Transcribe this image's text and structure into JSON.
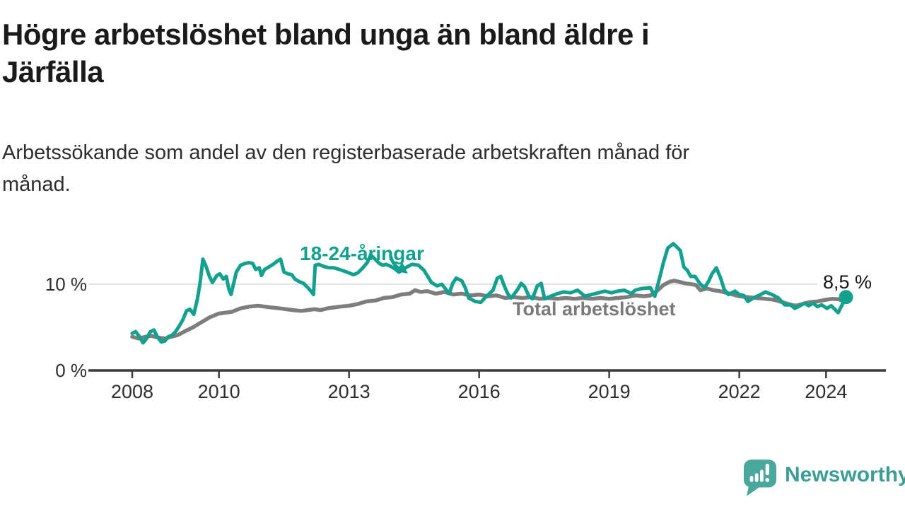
{
  "title": {
    "line1": "Högre arbetslöshet bland unga än bland äldre i",
    "line2": "Järfälla"
  },
  "subtitle": {
    "line1": "Arbetssökande som andel av den registerbaserade arbetskraften månad för",
    "line2": "månad."
  },
  "branding": {
    "name": "Newsworthy",
    "icon": "speech-bubble-bar-chart-exclamation",
    "color": "#3b9e94",
    "icon_color": "#4aa79c"
  },
  "colors": {
    "accent_teal": "#12a08f",
    "series_gray": "#7d7d7d",
    "gridline": "#d9d9d9",
    "axis": "#3c3c3c",
    "background": "#ffffff"
  },
  "chart_data": {
    "type": "line",
    "title": "Högre arbetslöshet bland unga än bland äldre i Järfälla",
    "subtitle": "Arbetssökande som andel av den registerbaserade arbetskraften månad för månad.",
    "unit": "%",
    "grid": "horizontal-at-10-only",
    "legend_position": "inline-labels-on-lines",
    "x_axis": {
      "range": [
        2007.9,
        2025.4
      ],
      "ticks": [
        {
          "year": 2008,
          "label": "2008"
        },
        {
          "year": 2010,
          "label": "2010"
        },
        {
          "year": 2013,
          "label": "2013"
        },
        {
          "year": 2016,
          "label": "2016"
        },
        {
          "year": 2019,
          "label": "2019"
        },
        {
          "year": 2022,
          "label": "2022"
        },
        {
          "year": 2024,
          "label": "2024"
        }
      ]
    },
    "y_axis": {
      "range": [
        0,
        16
      ],
      "ticks": [
        {
          "value": 0,
          "label": "0 %"
        },
        {
          "value": 10,
          "label": "10 %"
        }
      ]
    },
    "annotations": {
      "latest_label": "8,5 %",
      "latest_point": [
        2024.46,
        8.5
      ]
    },
    "series": [
      {
        "name": "18-24-åringar",
        "color": "#12a08f",
        "points": [
          [
            2008.0,
            4.3
          ],
          [
            2008.08,
            4.5
          ],
          [
            2008.17,
            3.9
          ],
          [
            2008.25,
            3.2
          ],
          [
            2008.33,
            3.7
          ],
          [
            2008.42,
            4.5
          ],
          [
            2008.5,
            4.7
          ],
          [
            2008.58,
            3.9
          ],
          [
            2008.67,
            3.3
          ],
          [
            2008.75,
            3.4
          ],
          [
            2008.83,
            3.9
          ],
          [
            2008.92,
            4.1
          ],
          [
            2009.0,
            4.5
          ],
          [
            2009.08,
            5.1
          ],
          [
            2009.17,
            5.9
          ],
          [
            2009.25,
            6.9
          ],
          [
            2009.33,
            7.1
          ],
          [
            2009.42,
            6.5
          ],
          [
            2009.5,
            8.2
          ],
          [
            2009.56,
            10.0
          ],
          [
            2009.63,
            12.9
          ],
          [
            2009.7,
            12.1
          ],
          [
            2009.78,
            10.9
          ],
          [
            2009.85,
            10.2
          ],
          [
            2009.95,
            11.0
          ],
          [
            2010.02,
            11.2
          ],
          [
            2010.1,
            10.6
          ],
          [
            2010.17,
            10.9
          ],
          [
            2010.23,
            9.4
          ],
          [
            2010.28,
            8.8
          ],
          [
            2010.4,
            11.4
          ],
          [
            2010.5,
            12.2
          ],
          [
            2010.6,
            12.4
          ],
          [
            2010.7,
            12.5
          ],
          [
            2010.78,
            12.4
          ],
          [
            2010.85,
            11.7
          ],
          [
            2010.93,
            11.9
          ],
          [
            2010.98,
            11.0
          ],
          [
            2011.05,
            11.7
          ],
          [
            2011.15,
            12.0
          ],
          [
            2011.25,
            12.3
          ],
          [
            2011.35,
            12.7
          ],
          [
            2011.42,
            12.9
          ],
          [
            2011.5,
            11.4
          ],
          [
            2011.6,
            11.2
          ],
          [
            2011.68,
            11.1
          ],
          [
            2011.75,
            10.6
          ],
          [
            2011.85,
            10.3
          ],
          [
            2011.95,
            10.1
          ],
          [
            2012.05,
            9.6
          ],
          [
            2012.12,
            9.2
          ],
          [
            2012.18,
            8.8
          ],
          [
            2012.22,
            12.2
          ],
          [
            2012.3,
            12.3
          ],
          [
            2012.45,
            12.0
          ],
          [
            2012.55,
            11.9
          ],
          [
            2012.65,
            11.9
          ],
          [
            2012.78,
            11.7
          ],
          [
            2012.9,
            11.5
          ],
          [
            2013.0,
            11.3
          ],
          [
            2013.1,
            11.1
          ],
          [
            2013.2,
            11.3
          ],
          [
            2013.3,
            11.8
          ],
          [
            2013.42,
            12.5
          ],
          [
            2013.5,
            13.4
          ],
          [
            2013.6,
            12.9
          ],
          [
            2013.7,
            12.4
          ],
          [
            2013.78,
            12.2
          ],
          [
            2013.85,
            12.3
          ],
          [
            2013.95,
            12.1
          ],
          [
            2014.05,
            11.8
          ],
          [
            2014.15,
            11.4
          ],
          [
            2014.3,
            11.9
          ],
          [
            2014.45,
            12.3
          ],
          [
            2014.6,
            12.2
          ],
          [
            2014.73,
            11.6
          ],
          [
            2014.9,
            10.2
          ],
          [
            2015.03,
            9.8
          ],
          [
            2015.14,
            10.0
          ],
          [
            2015.31,
            8.9
          ],
          [
            2015.39,
            10.1
          ],
          [
            2015.47,
            10.7
          ],
          [
            2015.6,
            10.4
          ],
          [
            2015.68,
            9.6
          ],
          [
            2015.76,
            8.4
          ],
          [
            2015.91,
            8.0
          ],
          [
            2016.04,
            7.9
          ],
          [
            2016.17,
            8.6
          ],
          [
            2016.32,
            9.3
          ],
          [
            2016.42,
            10.7
          ],
          [
            2016.5,
            10.9
          ],
          [
            2016.58,
            9.8
          ],
          [
            2016.66,
            8.9
          ],
          [
            2016.74,
            8.4
          ],
          [
            2016.89,
            9.4
          ],
          [
            2016.97,
            10.1
          ],
          [
            2017.05,
            9.7
          ],
          [
            2017.15,
            8.6
          ],
          [
            2017.23,
            8.3
          ],
          [
            2017.34,
            9.8
          ],
          [
            2017.43,
            10.1
          ],
          [
            2017.51,
            8.3
          ],
          [
            2017.65,
            8.6
          ],
          [
            2017.8,
            8.9
          ],
          [
            2017.95,
            9.1
          ],
          [
            2018.11,
            9.0
          ],
          [
            2018.27,
            9.3
          ],
          [
            2018.44,
            8.6
          ],
          [
            2018.6,
            8.8
          ],
          [
            2018.75,
            9.0
          ],
          [
            2018.9,
            9.2
          ],
          [
            2019.05,
            9.0
          ],
          [
            2019.2,
            9.2
          ],
          [
            2019.35,
            9.3
          ],
          [
            2019.51,
            8.9
          ],
          [
            2019.6,
            9.3
          ],
          [
            2019.75,
            9.5
          ],
          [
            2019.95,
            9.6
          ],
          [
            2020.05,
            8.6
          ],
          [
            2020.15,
            10.5
          ],
          [
            2020.25,
            12.5
          ],
          [
            2020.35,
            14.2
          ],
          [
            2020.48,
            14.7
          ],
          [
            2020.56,
            14.3
          ],
          [
            2020.64,
            13.9
          ],
          [
            2020.72,
            12.0
          ],
          [
            2020.8,
            11.6
          ],
          [
            2020.88,
            10.9
          ],
          [
            2020.98,
            10.9
          ],
          [
            2021.1,
            10.0
          ],
          [
            2021.2,
            9.6
          ],
          [
            2021.3,
            10.4
          ],
          [
            2021.37,
            11.2
          ],
          [
            2021.47,
            11.9
          ],
          [
            2021.57,
            10.7
          ],
          [
            2021.65,
            9.4
          ],
          [
            2021.75,
            8.8
          ],
          [
            2021.9,
            9.2
          ],
          [
            2022.0,
            8.8
          ],
          [
            2022.1,
            8.7
          ],
          [
            2022.2,
            8.0
          ],
          [
            2022.32,
            8.4
          ],
          [
            2022.45,
            8.7
          ],
          [
            2022.6,
            9.1
          ],
          [
            2022.75,
            8.8
          ],
          [
            2022.9,
            8.4
          ],
          [
            2023.05,
            7.6
          ],
          [
            2023.18,
            7.6
          ],
          [
            2023.28,
            7.2
          ],
          [
            2023.4,
            7.5
          ],
          [
            2023.5,
            7.8
          ],
          [
            2023.6,
            7.5
          ],
          [
            2023.7,
            7.8
          ],
          [
            2023.8,
            7.4
          ],
          [
            2023.9,
            7.6
          ],
          [
            2024.02,
            7.2
          ],
          [
            2024.12,
            7.5
          ],
          [
            2024.28,
            6.7
          ],
          [
            2024.46,
            8.5
          ]
        ]
      },
      {
        "name": "Total arbetslöshet",
        "color": "#7d7d7d",
        "points": [
          [
            2008.0,
            3.9
          ],
          [
            2008.15,
            3.7
          ],
          [
            2008.3,
            3.9
          ],
          [
            2008.45,
            4.0
          ],
          [
            2008.6,
            3.8
          ],
          [
            2008.75,
            3.7
          ],
          [
            2008.9,
            3.9
          ],
          [
            2009.05,
            4.1
          ],
          [
            2009.2,
            4.5
          ],
          [
            2009.4,
            5.0
          ],
          [
            2009.6,
            5.6
          ],
          [
            2009.8,
            6.2
          ],
          [
            2010.0,
            6.6
          ],
          [
            2010.15,
            6.7
          ],
          [
            2010.3,
            6.8
          ],
          [
            2010.5,
            7.2
          ],
          [
            2010.7,
            7.4
          ],
          [
            2010.9,
            7.5
          ],
          [
            2011.05,
            7.4
          ],
          [
            2011.2,
            7.3
          ],
          [
            2011.4,
            7.2
          ],
          [
            2011.55,
            7.1
          ],
          [
            2011.7,
            7.0
          ],
          [
            2011.9,
            6.9
          ],
          [
            2012.05,
            7.0
          ],
          [
            2012.2,
            7.1
          ],
          [
            2012.35,
            7.0
          ],
          [
            2012.5,
            7.2
          ],
          [
            2012.65,
            7.3
          ],
          [
            2012.8,
            7.4
          ],
          [
            2013.0,
            7.5
          ],
          [
            2013.2,
            7.7
          ],
          [
            2013.4,
            8.0
          ],
          [
            2013.6,
            8.1
          ],
          [
            2013.8,
            8.4
          ],
          [
            2014.0,
            8.5
          ],
          [
            2014.2,
            8.8
          ],
          [
            2014.4,
            8.9
          ],
          [
            2014.52,
            9.3
          ],
          [
            2014.65,
            9.1
          ],
          [
            2014.8,
            9.2
          ],
          [
            2015.0,
            8.9
          ],
          [
            2015.2,
            9.1
          ],
          [
            2015.4,
            8.8
          ],
          [
            2015.6,
            8.9
          ],
          [
            2015.8,
            8.7
          ],
          [
            2016.0,
            8.8
          ],
          [
            2016.2,
            8.6
          ],
          [
            2016.4,
            8.7
          ],
          [
            2016.6,
            8.4
          ],
          [
            2016.8,
            8.5
          ],
          [
            2017.0,
            8.4
          ],
          [
            2017.2,
            8.5
          ],
          [
            2017.4,
            8.3
          ],
          [
            2017.6,
            8.4
          ],
          [
            2017.8,
            8.3
          ],
          [
            2018.0,
            8.4
          ],
          [
            2018.2,
            8.3
          ],
          [
            2018.4,
            8.4
          ],
          [
            2018.6,
            8.3
          ],
          [
            2018.8,
            8.4
          ],
          [
            2019.0,
            8.3
          ],
          [
            2019.2,
            8.4
          ],
          [
            2019.4,
            8.5
          ],
          [
            2019.6,
            8.7
          ],
          [
            2019.8,
            8.6
          ],
          [
            2019.95,
            8.7
          ],
          [
            2020.1,
            9.2
          ],
          [
            2020.25,
            9.9
          ],
          [
            2020.4,
            10.3
          ],
          [
            2020.5,
            10.4
          ],
          [
            2020.6,
            10.3
          ],
          [
            2020.75,
            10.1
          ],
          [
            2020.9,
            10.0
          ],
          [
            2021.0,
            9.9
          ],
          [
            2021.1,
            9.3
          ],
          [
            2021.25,
            9.5
          ],
          [
            2021.4,
            9.3
          ],
          [
            2021.55,
            9.2
          ],
          [
            2021.7,
            9.0
          ],
          [
            2021.85,
            8.8
          ],
          [
            2022.0,
            8.6
          ],
          [
            2022.2,
            8.5
          ],
          [
            2022.4,
            8.4
          ],
          [
            2022.6,
            8.3
          ],
          [
            2022.8,
            8.2
          ],
          [
            2023.0,
            7.9
          ],
          [
            2023.2,
            7.6
          ],
          [
            2023.3,
            7.5
          ],
          [
            2023.45,
            7.7
          ],
          [
            2023.6,
            7.9
          ],
          [
            2023.8,
            8.0
          ],
          [
            2024.0,
            8.2
          ],
          [
            2024.15,
            8.3
          ],
          [
            2024.3,
            8.25
          ],
          [
            2024.42,
            8.0
          ]
        ]
      }
    ]
  }
}
